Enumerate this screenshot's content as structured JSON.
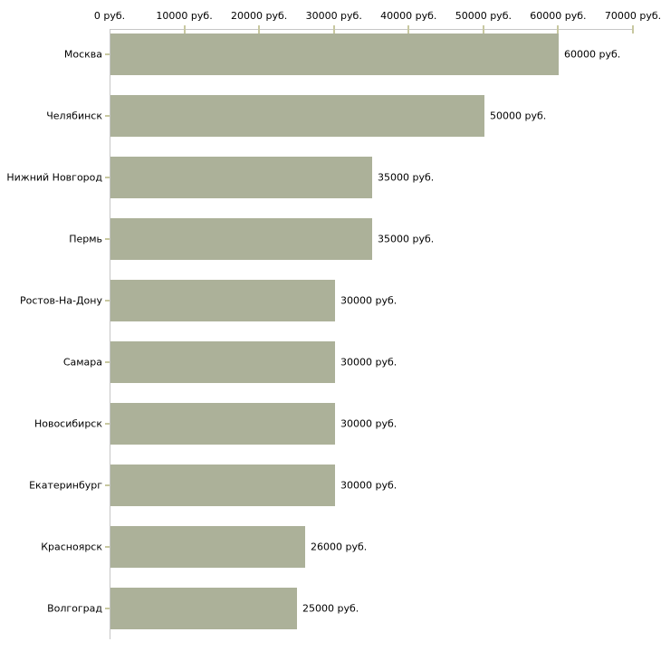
{
  "chart_data": {
    "type": "bar",
    "orientation": "horizontal",
    "title": "",
    "xlabel": "",
    "ylabel": "",
    "unit": "руб.",
    "xlim": [
      0,
      70000
    ],
    "x_tick_values": [
      0,
      10000,
      20000,
      30000,
      40000,
      50000,
      60000,
      70000
    ],
    "x_tick_labels": [
      "0 руб.",
      "10000 руб.",
      "20000 руб.",
      "30000 руб.",
      "40000 руб.",
      "50000 руб.",
      "60000 руб.",
      "70000 руб."
    ],
    "categories": [
      "Москва",
      "Челябинск",
      "Нижний Новгород",
      "Пермь",
      "Ростов-На-Дону",
      "Самара",
      "Новосибирск",
      "Екатеринбург",
      "Красноярск",
      "Волгоград"
    ],
    "values": [
      60000,
      50000,
      35000,
      35000,
      30000,
      30000,
      30000,
      30000,
      26000,
      25000
    ],
    "value_labels": [
      "60000 руб.",
      "50000 руб.",
      "35000 руб.",
      "35000 руб.",
      "30000 руб.",
      "30000 руб.",
      "30000 руб.",
      "30000 руб.",
      "26000 руб.",
      "25000 руб."
    ],
    "grid": false,
    "legend": false,
    "colors": {
      "bar": "#acb199",
      "axis_line": "#c6c6c6",
      "tick_mark": "#c8c8a0",
      "text": "#000000",
      "background": "#ffffff"
    }
  }
}
